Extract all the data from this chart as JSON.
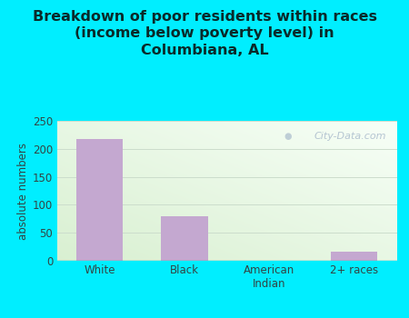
{
  "title": "Breakdown of poor residents within races\n(income below poverty level) in\nColumbiana, AL",
  "categories": [
    "White",
    "Black",
    "American\nIndian",
    "2+ races"
  ],
  "values": [
    218,
    79,
    0,
    17
  ],
  "bar_color": "#c4a8d0",
  "ylabel": "absolute numbers",
  "ylim": [
    0,
    250
  ],
  "yticks": [
    0,
    50,
    100,
    150,
    200,
    250
  ],
  "background_outer": "#00eeff",
  "title_fontsize": 11.5,
  "title_color": "#0a2a2a",
  "watermark": "City-Data.com",
  "watermark_color": "#aabbcc",
  "grid_color": "#ccddcc",
  "spine_color": "#00eeff",
  "tick_color": "#334444"
}
